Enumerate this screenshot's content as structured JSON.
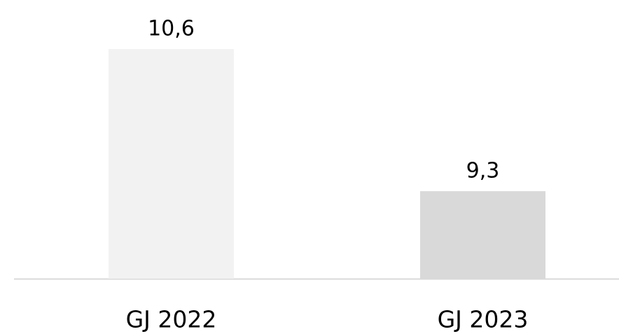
{
  "chart_data": {
    "type": "bar",
    "categories": [
      "GJ 2022",
      "GJ 2023"
    ],
    "values": [
      10.6,
      9.3
    ],
    "value_labels": [
      "10,6",
      "9,3"
    ],
    "colors": [
      "#f2f2f2",
      "#d9d9d9"
    ],
    "ylim": [
      8.5,
      11
    ]
  }
}
